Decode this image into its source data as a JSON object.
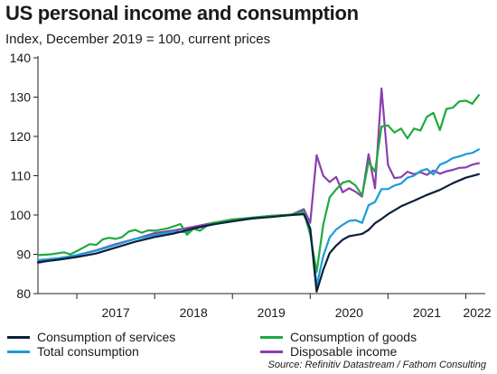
{
  "title": "US personal income and consumption",
  "subtitle": "Index, December 2019 = 100, current prices",
  "source": "Source: Refinitiv Datastream / Fathom Consulting",
  "chart_data": {
    "type": "line",
    "title": "US personal income and consumption",
    "subtitle": "Index, December 2019 = 100, current prices",
    "xlabel": "",
    "ylabel": "",
    "ylim": [
      80,
      140
    ],
    "xlim": [
      2016.5,
      2022.25
    ],
    "yticks": [
      80,
      90,
      100,
      110,
      120,
      130,
      140
    ],
    "xtick_labels": [
      "2017",
      "2018",
      "2019",
      "2020",
      "2021",
      "2022"
    ],
    "grid": false,
    "legend": "bottom",
    "series": [
      {
        "name": "Consumption of services",
        "color": "#0b1f3a",
        "x": [
          2016.5,
          2016.75,
          2017.0,
          2017.25,
          2017.5,
          2017.75,
          2018.0,
          2018.25,
          2018.5,
          2018.75,
          2019.0,
          2019.25,
          2019.5,
          2019.75,
          2019.917,
          2020.0,
          2020.083,
          2020.167,
          2020.25,
          2020.333,
          2020.417,
          2020.5,
          2020.583,
          2020.667,
          2020.75,
          2020.833,
          2020.917,
          2021.0,
          2021.167,
          2021.333,
          2021.5,
          2021.667,
          2021.833,
          2022.0,
          2022.167
        ],
        "y": [
          88,
          88.6,
          89.3,
          90.2,
          91.7,
          93.2,
          94.4,
          95.3,
          96.6,
          97.6,
          98.4,
          99.1,
          99.5,
          100.0,
          100.2,
          96.5,
          80.5,
          86,
          90.3,
          92.2,
          93.7,
          94.6,
          94.9,
          95.2,
          96.2,
          97.9,
          99.0,
          100.2,
          102.2,
          103.6,
          105.1,
          106.4,
          108.1,
          109.5,
          110.4
        ]
      },
      {
        "name": "Consumption of goods",
        "color": "#1faa3c",
        "x": [
          2016.5,
          2016.667,
          2016.833,
          2016.917,
          2017.0,
          2017.167,
          2017.25,
          2017.333,
          2017.417,
          2017.5,
          2017.583,
          2017.667,
          2017.75,
          2017.833,
          2017.917,
          2018.0,
          2018.167,
          2018.333,
          2018.417,
          2018.5,
          2018.583,
          2018.667,
          2018.75,
          2019.0,
          2019.25,
          2019.5,
          2019.75,
          2019.917,
          2020.0,
          2020.083,
          2020.167,
          2020.25,
          2020.333,
          2020.417,
          2020.5,
          2020.583,
          2020.667,
          2020.75,
          2020.833,
          2020.917,
          2021.0,
          2021.083,
          2021.167,
          2021.25,
          2021.333,
          2021.417,
          2021.5,
          2021.583,
          2021.667,
          2021.75,
          2021.833,
          2021.917,
          2022.0,
          2022.083,
          2022.167
        ],
        "y": [
          89.8,
          90.0,
          90.5,
          90.0,
          90.8,
          92.6,
          92.4,
          93.8,
          94.2,
          93.9,
          94.4,
          95.8,
          96.2,
          95.5,
          96.1,
          96.0,
          96.6,
          97.7,
          95.0,
          96.5,
          96.0,
          97.2,
          98.0,
          98.9,
          99.3,
          99.8,
          100.1,
          100.9,
          95.0,
          85.5,
          97.5,
          104.5,
          106.5,
          108.2,
          108.7,
          107.5,
          105.0,
          113.5,
          111.0,
          122.5,
          122.8,
          121.0,
          122.0,
          119.5,
          122.0,
          121.5,
          125.0,
          126.0,
          121.6,
          127.0,
          127.3,
          128.9,
          129.1,
          128.3,
          130.5
        ]
      },
      {
        "name": "Total consumption",
        "color": "#1a9bd7",
        "x": [
          2016.5,
          2016.75,
          2017.0,
          2017.25,
          2017.5,
          2017.75,
          2018.0,
          2018.25,
          2018.417,
          2018.5,
          2018.75,
          2019.0,
          2019.25,
          2019.5,
          2019.75,
          2019.917,
          2020.0,
          2020.083,
          2020.167,
          2020.25,
          2020.333,
          2020.417,
          2020.5,
          2020.583,
          2020.667,
          2020.75,
          2020.833,
          2020.917,
          2021.0,
          2021.083,
          2021.167,
          2021.25,
          2021.333,
          2021.417,
          2021.5,
          2021.583,
          2021.667,
          2021.75,
          2021.833,
          2021.917,
          2022.0,
          2022.083,
          2022.167
        ],
        "y": [
          88.5,
          89.0,
          89.8,
          90.9,
          92.4,
          93.9,
          94.9,
          95.8,
          95.6,
          96.5,
          97.6,
          98.5,
          99.1,
          99.6,
          100.0,
          100.4,
          96.7,
          82.0,
          89.5,
          94.3,
          96.3,
          97.5,
          98.5,
          98.7,
          98.0,
          102.5,
          103.3,
          106.6,
          106.6,
          107.5,
          108.0,
          109.5,
          110.0,
          111.2,
          111.7,
          110.3,
          112.8,
          113.5,
          114.5,
          114.9,
          115.5,
          115.8,
          116.7
        ]
      },
      {
        "name": "Disposable income",
        "color": "#8a3fb0",
        "x": [
          2016.5,
          2016.75,
          2017.0,
          2017.25,
          2017.5,
          2017.75,
          2018.0,
          2018.25,
          2018.5,
          2018.75,
          2019.0,
          2019.25,
          2019.5,
          2019.75,
          2019.917,
          2020.0,
          2020.083,
          2020.167,
          2020.25,
          2020.333,
          2020.417,
          2020.5,
          2020.583,
          2020.667,
          2020.75,
          2020.833,
          2020.917,
          2021.0,
          2021.083,
          2021.167,
          2021.25,
          2021.333,
          2021.417,
          2021.5,
          2021.583,
          2021.667,
          2021.75,
          2021.833,
          2021.917,
          2022.0,
          2022.083,
          2022.167
        ],
        "y": [
          87.8,
          88.8,
          89.8,
          91.0,
          92.6,
          93.9,
          95.4,
          96.1,
          97.0,
          98.0,
          98.6,
          99.3,
          99.8,
          100.0,
          101.5,
          98.0,
          115.2,
          110.0,
          108.4,
          109.7,
          105.8,
          106.8,
          105.9,
          104.7,
          115.5,
          106.8,
          132.2,
          112.7,
          109.4,
          109.6,
          111.0,
          110.4,
          110.9,
          110.2,
          111.3,
          110.5,
          111.1,
          111.5,
          112.0,
          112.1,
          112.8,
          113.2
        ]
      }
    ]
  }
}
